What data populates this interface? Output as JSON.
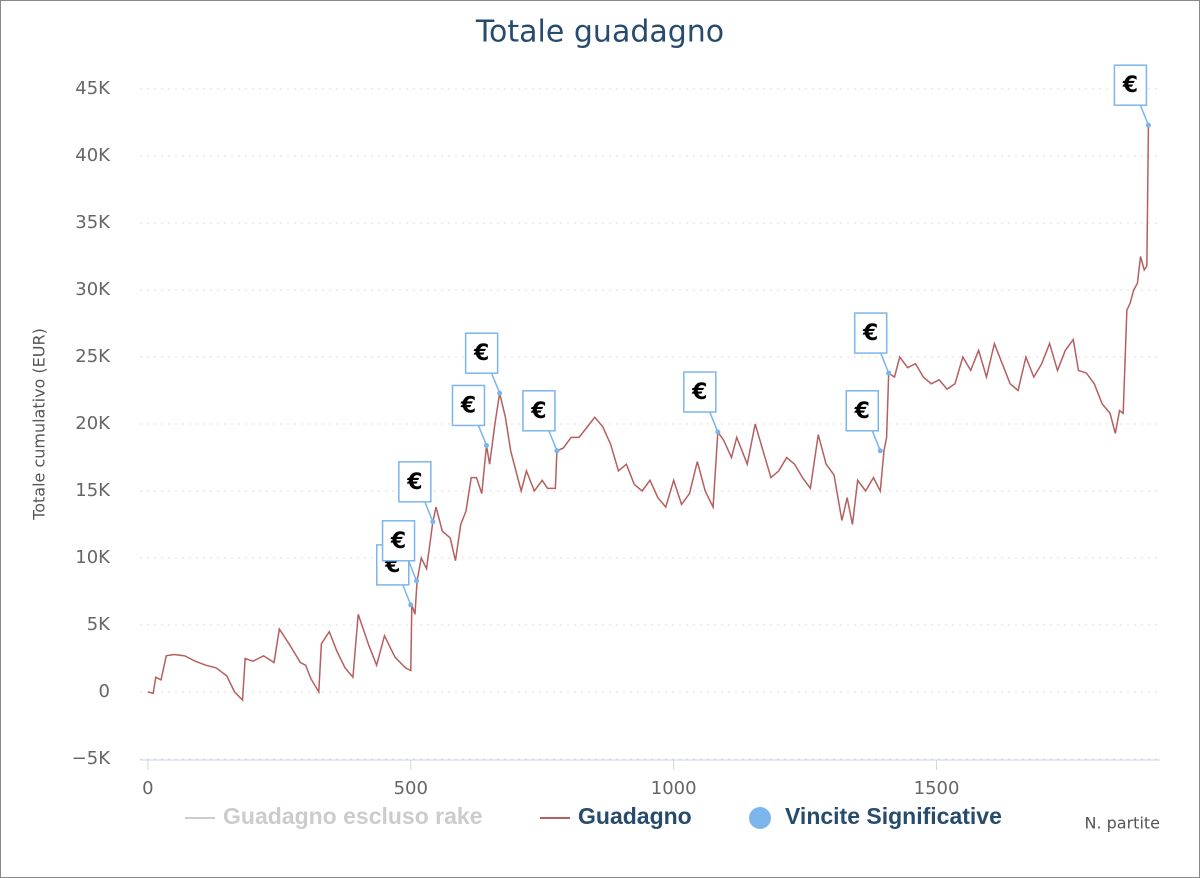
{
  "chart_data": {
    "type": "line",
    "title": "Totale guadagno",
    "y_label": "Totale cumulativo (EUR)",
    "x_label": "N. partite",
    "xlim": [
      -15,
      1925
    ],
    "xticks": [
      0,
      500,
      1000,
      1500
    ],
    "ylim": [
      -5000,
      45000
    ],
    "yticks": [
      {
        "value": -5000,
        "label": "−5K"
      },
      {
        "value": 0,
        "label": "0"
      },
      {
        "value": 5000,
        "label": "5K"
      },
      {
        "value": 10000,
        "label": "10K"
      },
      {
        "value": 15000,
        "label": "15K"
      },
      {
        "value": 20000,
        "label": "20K"
      },
      {
        "value": 25000,
        "label": "25K"
      },
      {
        "value": 30000,
        "label": "30K"
      },
      {
        "value": 35000,
        "label": "35K"
      },
      {
        "value": 40000,
        "label": "40K"
      },
      {
        "value": 45000,
        "label": "45K"
      }
    ],
    "grid": true,
    "series": [
      {
        "name": "Guadagno escluso rake",
        "color": "#cccccc",
        "visible": false
      },
      {
        "name": "Guadagno",
        "color": "#b55f5f",
        "x": [
          0,
          10,
          15,
          25,
          35,
          50,
          70,
          90,
          110,
          130,
          150,
          165,
          180,
          185,
          200,
          220,
          240,
          250,
          270,
          290,
          300,
          310,
          325,
          330,
          345,
          360,
          375,
          390,
          400,
          420,
          435,
          450,
          470,
          490,
          500,
          502,
          508,
          512,
          520,
          530,
          542,
          548,
          560,
          575,
          585,
          595,
          605,
          615,
          625,
          635,
          644,
          650,
          660,
          669,
          680,
          690,
          700,
          710,
          720,
          735,
          750,
          760,
          775,
          778,
          790,
          805,
          820,
          840,
          850,
          865,
          880,
          895,
          910,
          925,
          940,
          955,
          970,
          985,
          1000,
          1015,
          1030,
          1045,
          1060,
          1075,
          1084,
          1095,
          1110,
          1120,
          1140,
          1155,
          1170,
          1185,
          1200,
          1215,
          1230,
          1245,
          1260,
          1275,
          1290,
          1305,
          1320,
          1330,
          1340,
          1350,
          1365,
          1380,
          1393,
          1400,
          1405,
          1409,
          1420,
          1430,
          1445,
          1460,
          1475,
          1490,
          1505,
          1520,
          1535,
          1550,
          1565,
          1580,
          1595,
          1610,
          1625,
          1640,
          1655,
          1670,
          1685,
          1700,
          1715,
          1730,
          1745,
          1760,
          1770,
          1785,
          1800,
          1815,
          1830,
          1840,
          1848,
          1855,
          1862,
          1868,
          1875,
          1882,
          1888,
          1895,
          1900,
          1903
        ],
        "values": [
          0,
          -100,
          1100,
          900,
          2700,
          2800,
          2700,
          2300,
          2000,
          1800,
          1200,
          0,
          -600,
          2500,
          2300,
          2700,
          2200,
          4700,
          3500,
          2200,
          2000,
          1000,
          0,
          3600,
          4500,
          3000,
          1800,
          1100,
          5800,
          3500,
          2000,
          4200,
          2600,
          1800,
          1600,
          6500,
          5800,
          8300,
          10000,
          9200,
          12700,
          13800,
          12000,
          11500,
          9800,
          12500,
          13500,
          16000,
          16000,
          14800,
          18400,
          17000,
          20000,
          22300,
          20500,
          18000,
          16500,
          15000,
          16500,
          15000,
          15800,
          15200,
          15200,
          18000,
          18200,
          19000,
          19000,
          20000,
          20500,
          19800,
          18500,
          16500,
          17000,
          15500,
          15000,
          15800,
          14500,
          13800,
          15800,
          14000,
          14800,
          17200,
          15000,
          13800,
          19400,
          18800,
          17500,
          19000,
          17000,
          20000,
          18000,
          16000,
          16500,
          17500,
          17000,
          16000,
          15200,
          19200,
          17000,
          16200,
          12800,
          14500,
          12500,
          15800,
          15000,
          16000,
          15000,
          18000,
          19000,
          23800,
          23500,
          25000,
          24200,
          24500,
          23500,
          23000,
          23300,
          22600,
          23000,
          25000,
          24000,
          25500,
          23500,
          26000,
          24500,
          23000,
          22500,
          25000,
          23500,
          24500,
          26000,
          24000,
          25500,
          26300,
          24000,
          23800,
          23000,
          21500,
          20800,
          19300,
          21000,
          20800,
          28500,
          29000,
          30000,
          30500,
          32500,
          31500,
          31800,
          42300
        ]
      },
      {
        "name": "Vincite Significative",
        "color": "#7cb5ec",
        "type": "flags",
        "flag_text": "€",
        "x": [
          500,
          511,
          542,
          644,
          669,
          778,
          1084,
          1393,
          1409,
          1903
        ],
        "values": [
          6500,
          8300,
          12700,
          18400,
          22300,
          18000,
          19400,
          18000,
          23800,
          42300
        ]
      }
    ]
  }
}
